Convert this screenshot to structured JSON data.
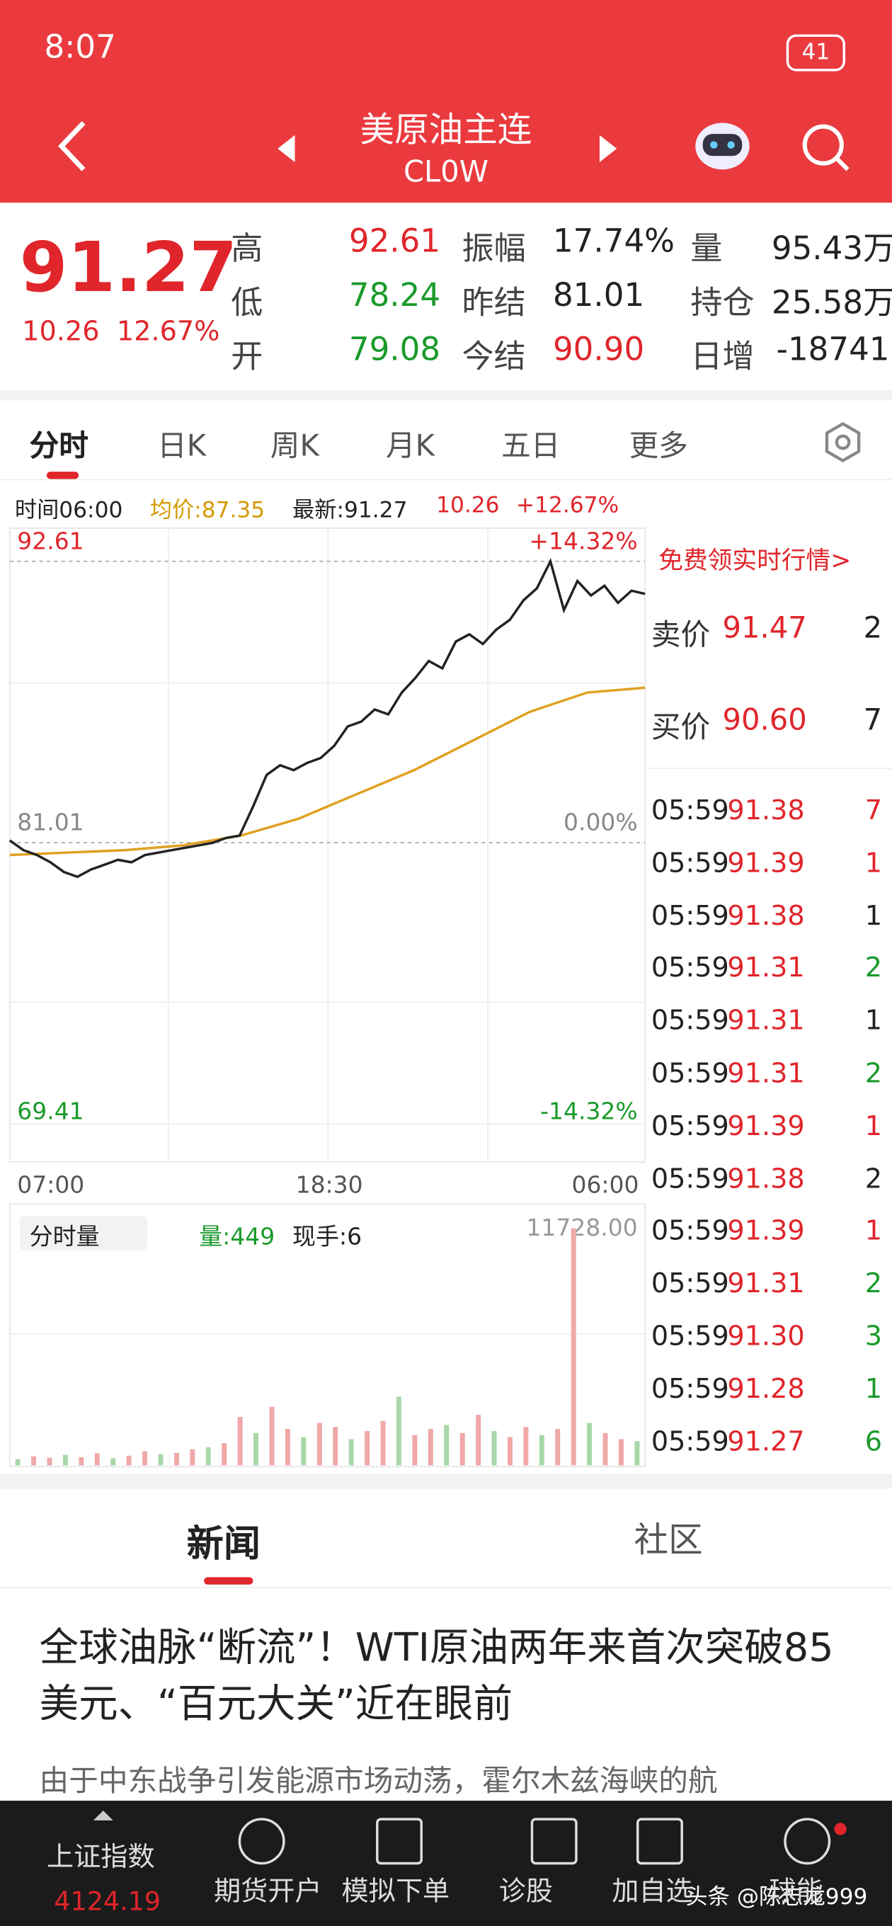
{
  "status": {
    "time": "8:07",
    "battery": "41"
  },
  "header": {
    "title": "美原油主连",
    "code": "CL0W"
  },
  "quote": {
    "price": "91.27",
    "change": "10.26",
    "pct": "12.67%",
    "stats": [
      [
        {
          "k": "高",
          "v": "92.61"
        },
        {
          "k": "振幅",
          "v": "17.74%"
        },
        {
          "k": "量",
          "v": "95.43万"
        }
      ],
      [
        {
          "k": "低",
          "v": "78.24"
        },
        {
          "k": "昨结",
          "v": "81.01"
        },
        {
          "k": "持仓",
          "v": "25.58万"
        }
      ],
      [
        {
          "k": "开",
          "v": "79.08"
        },
        {
          "k": "今结",
          "v": "90.90"
        },
        {
          "k": "日增",
          "v": "-18741"
        }
      ]
    ]
  },
  "tabs": [
    "分时",
    "日K",
    "周K",
    "月K",
    "五日",
    "更多"
  ],
  "info": {
    "time": "时间06:00",
    "avg": "均价:87.35",
    "latest": "最新:91.27",
    "change": "10.26",
    "pct": "+12.67%"
  },
  "chart": {
    "ylim": [
      69.41,
      92.61
    ],
    "yticks": [
      92.61,
      81.01,
      69.41
    ],
    "pct_labels": [
      "+14.32%",
      "0.00%",
      "-14.32%"
    ],
    "xticks": [
      "07:00",
      "18:30",
      "06:00"
    ],
    "price": [
      81.1,
      80.7,
      80.5,
      80.2,
      79.8,
      79.6,
      79.9,
      80.1,
      80.3,
      80.2,
      80.5,
      80.6,
      80.7,
      80.8,
      80.9,
      81.0,
      81.2,
      81.3,
      82.5,
      83.8,
      84.2,
      84.0,
      84.3,
      84.5,
      85.0,
      85.8,
      86.0,
      86.5,
      86.3,
      87.2,
      87.8,
      88.5,
      88.2,
      89.3,
      89.6,
      89.2,
      89.8,
      90.2,
      91.0,
      91.5,
      92.61,
      90.6,
      91.8,
      91.2,
      91.6,
      90.9,
      91.4,
      91.27
    ],
    "avg": [
      80.5,
      80.6,
      80.7,
      80.9,
      81.3,
      82.0,
      83.0,
      84.0,
      85.2,
      86.4,
      87.2,
      87.4
    ],
    "volume_label": "分时量",
    "volume_now": "量:449",
    "volume_hand": "现手:6",
    "vol_ylim": [
      0,
      11728
    ],
    "vol_top_label": "11728.00",
    "volume": [
      300,
      450,
      380,
      520,
      400,
      600,
      350,
      480,
      700,
      550,
      620,
      800,
      900,
      1100,
      2400,
      1600,
      2900,
      1800,
      1400,
      2100,
      1900,
      1300,
      1700,
      2200,
      3400,
      1500,
      1800,
      2000,
      1600,
      2500,
      1700,
      1400,
      1900,
      1500,
      1800,
      11728,
      2100,
      1600,
      1300,
      1200
    ]
  },
  "promo": "免费领实时行情>",
  "book": [
    {
      "k": "卖价",
      "p": "91.47",
      "v": "2"
    },
    {
      "k": "买价",
      "p": "90.60",
      "v": "7"
    }
  ],
  "trades": [
    [
      "05:59",
      "91.38",
      "7",
      "#e0252b"
    ],
    [
      "05:59",
      "91.39",
      "1",
      "#e0252b"
    ],
    [
      "05:59",
      "91.38",
      "1",
      "#222"
    ],
    [
      "05:59",
      "91.31",
      "2",
      "#1a9a2a"
    ],
    [
      "05:59",
      "91.31",
      "1",
      "#222"
    ],
    [
      "05:59",
      "91.31",
      "2",
      "#1a9a2a"
    ],
    [
      "05:59",
      "91.39",
      "1",
      "#e0252b"
    ],
    [
      "05:59",
      "91.38",
      "2",
      "#222"
    ],
    [
      "05:59",
      "91.39",
      "1",
      "#e0252b"
    ],
    [
      "05:59",
      "91.31",
      "2",
      "#1a9a2a"
    ],
    [
      "05:59",
      "91.30",
      "3",
      "#1a9a2a"
    ],
    [
      "05:59",
      "91.28",
      "1",
      "#1a9a2a"
    ],
    [
      "05:59",
      "91.27",
      "6",
      "#1a9a2a"
    ]
  ],
  "news_tabs": [
    "新闻",
    "社区"
  ],
  "headline": "全球油脉“断流”！WTI原油两年来首次突破85美元、“百元大关”近在眼前",
  "snippet": "由于中东战争引发能源市场动荡，霍尔木兹海峡的航",
  "nav": {
    "index_name": "上证指数",
    "index_value": "4124.19",
    "items": [
      "期货开户",
      "模拟下单",
      "诊股",
      "加自选",
      "球能"
    ]
  },
  "watermark": "头条 @陈志龙999"
}
